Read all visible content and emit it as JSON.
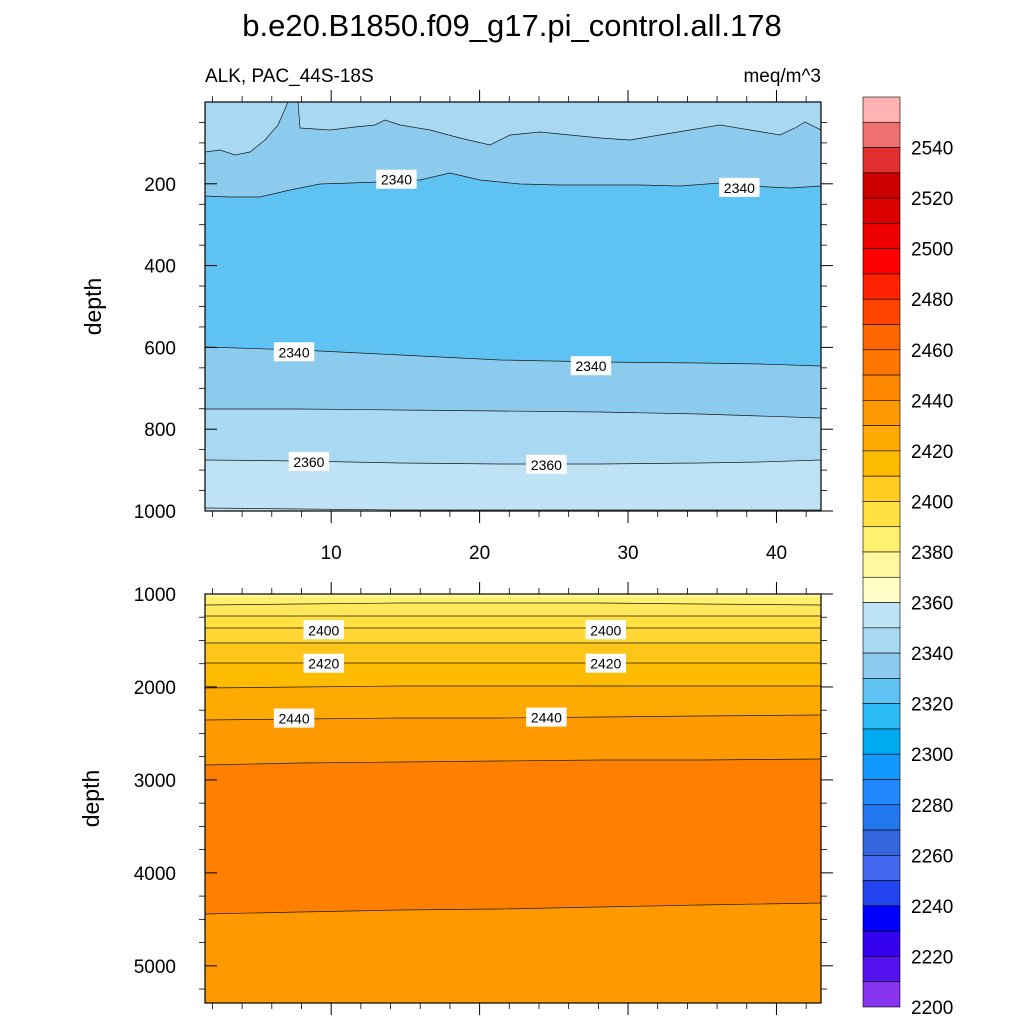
{
  "chart_data": {
    "type": "heatmap",
    "title": "b.e20.B1850.f09_g17.pi_control.all.178",
    "left_subtitle": "ALK, PAC_44S-18S",
    "right_subtitle": "meq/m^3",
    "ylabel": "depth",
    "x_ticks": [
      "10",
      "20",
      "30",
      "40"
    ],
    "x_tick_values": [
      10,
      20,
      30,
      40
    ],
    "xlim": [
      1.5,
      43
    ],
    "panels": [
      {
        "ylim": [
          1000,
          0
        ],
        "y_ticks": [
          "200",
          "400",
          "600",
          "800",
          "1000"
        ],
        "y_tick_values": [
          200,
          400,
          600,
          800,
          1000
        ],
        "contour_labels": [
          {
            "text": "2340",
            "x": 14.4,
            "y": 190
          },
          {
            "text": "2340",
            "x": 37.5,
            "y": 210
          },
          {
            "text": "2340",
            "x": 7.5,
            "y": 612
          },
          {
            "text": "2340",
            "x": 27.5,
            "y": 646
          },
          {
            "text": "2360",
            "x": 8.5,
            "y": 880
          },
          {
            "text": "2360",
            "x": 24.5,
            "y": 887
          }
        ]
      },
      {
        "ylim": [
          5400,
          1000
        ],
        "y_ticks": [
          "1000",
          "2000",
          "3000",
          "4000",
          "5000"
        ],
        "y_tick_values": [
          1000,
          2000,
          3000,
          4000,
          5000
        ],
        "contour_labels": [
          {
            "text": "2400",
            "x": 9.5,
            "y": 1390
          },
          {
            "text": "2400",
            "x": 28.5,
            "y": 1390
          },
          {
            "text": "2420",
            "x": 9.5,
            "y": 1750
          },
          {
            "text": "2420",
            "x": 28.5,
            "y": 1750
          },
          {
            "text": "2440",
            "x": 7.5,
            "y": 2340
          },
          {
            "text": "2440",
            "x": 24.5,
            "y": 2330
          }
        ]
      }
    ],
    "colorbar": {
      "labels": [
        "2540",
        "2520",
        "2500",
        "2480",
        "2460",
        "2440",
        "2420",
        "2400",
        "2380",
        "2360",
        "2340",
        "2320",
        "2300",
        "2280",
        "2260",
        "2240",
        "2220",
        "2200"
      ],
      "label_values": [
        2540,
        2520,
        2500,
        2480,
        2460,
        2440,
        2420,
        2400,
        2380,
        2360,
        2340,
        2320,
        2300,
        2280,
        2260,
        2240,
        2220,
        2200
      ],
      "colors_top_to_bottom": [
        "#ffb3b3",
        "#f07070",
        "#e03030",
        "#cc0000",
        "#dd0000",
        "#ee0000",
        "#ff0000",
        "#ff2200",
        "#ff4400",
        "#ff6600",
        "#ff7700",
        "#ff8800",
        "#ff9900",
        "#ffaa00",
        "#ffbb00",
        "#ffcc22",
        "#ffe040",
        "#fff070",
        "#fff8a0",
        "#ffffc8",
        "#bde3f5",
        "#a8d8f2",
        "#8ccbee",
        "#5ec3f2",
        "#2bbcf5",
        "#00aaf0",
        "#1199ff",
        "#2288ff",
        "#2277ee",
        "#3366dd",
        "#4466ee",
        "#2244ee",
        "#0000ff",
        "#3300ee",
        "#5511ee",
        "#8833ee"
      ]
    }
  }
}
